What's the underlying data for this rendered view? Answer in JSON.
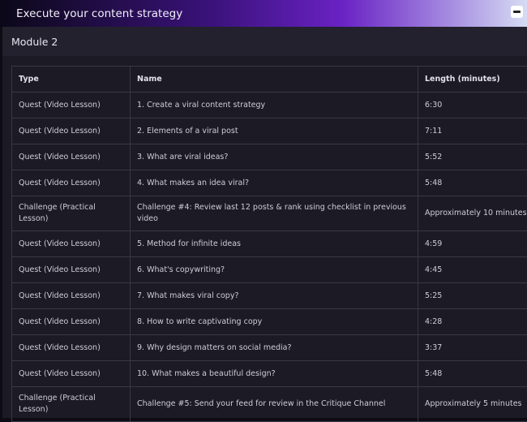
{
  "header": {
    "title": "Execute your content strategy",
    "collapse_icon": "minus-icon"
  },
  "module": {
    "title": "Module 2"
  },
  "table": {
    "columns": [
      "Type",
      "Name",
      "Length (minutes)"
    ],
    "rows": [
      [
        "Quest (Video Lesson)",
        "1. Create a viral content strategy",
        "6:30"
      ],
      [
        "Quest (Video Lesson)",
        "2. Elements of a viral post",
        "7:11"
      ],
      [
        "Quest (Video Lesson)",
        "3. What are viral ideas?",
        "5:52"
      ],
      [
        "Quest (Video Lesson)",
        "4. What makes an idea viral?",
        "5:48"
      ],
      [
        "Challenge (Practical Lesson)",
        "Challenge #4: Review last 12 posts & rank using checklist in previous video",
        "Approximately 10 minutes"
      ],
      [
        "Quest (Video Lesson)",
        "5. Method for infinite ideas",
        "4:59"
      ],
      [
        "Quest (Video Lesson)",
        "6. What's copywriting?",
        "4:45"
      ],
      [
        "Quest (Video Lesson)",
        "7. What makes viral copy?",
        "5:25"
      ],
      [
        "Quest (Video Lesson)",
        "8. How to write captivating copy",
        "4:28"
      ],
      [
        "Quest (Video Lesson)",
        "9. Why design matters on social media?",
        "3:37"
      ],
      [
        "Quest (Video Lesson)",
        "10. What makes a beautiful design?",
        "5:48"
      ],
      [
        "Challenge (Practical Lesson)",
        "Challenge #5: Send your feed for review in the Critique Channel",
        "Approximately 5 minutes"
      ]
    ]
  }
}
